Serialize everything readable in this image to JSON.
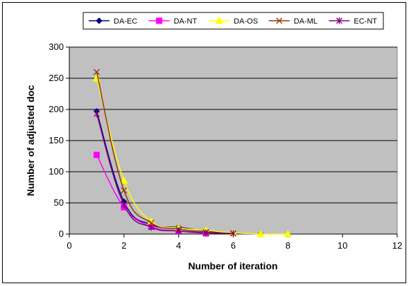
{
  "chart_data": {
    "type": "line",
    "title": "",
    "xlabel": "Number of iteration",
    "ylabel": "Number of adjusted doc",
    "xlim": [
      0,
      12
    ],
    "ylim": [
      0,
      300
    ],
    "xticks": [
      0,
      2,
      4,
      6,
      8,
      10,
      12
    ],
    "yticks": [
      0,
      50,
      100,
      150,
      200,
      250,
      300
    ],
    "grid": "horizontal",
    "plot_background": "#c0c0c0",
    "legend_position": "top",
    "series": [
      {
        "name": "DA-EC",
        "color": "#000080",
        "marker": "diamond",
        "x": [
          1,
          2,
          3,
          4,
          5,
          6,
          7
        ],
        "y": [
          197,
          52,
          15,
          11,
          5,
          1,
          0
        ]
      },
      {
        "name": "DA-NT",
        "color": "#ff00ff",
        "marker": "square",
        "x": [
          1,
          2,
          3,
          4,
          5
        ],
        "y": [
          127,
          43,
          12,
          5,
          1
        ]
      },
      {
        "name": "DA-OS",
        "color": "#ffff00",
        "marker": "triangle",
        "x": [
          1,
          2,
          3,
          4,
          5,
          6,
          7,
          8
        ],
        "y": [
          250,
          86,
          20,
          10,
          6,
          2,
          0,
          0
        ]
      },
      {
        "name": "DA-ML",
        "color": "#993300",
        "marker": "x",
        "x": [
          1,
          2,
          3,
          4,
          5,
          6
        ],
        "y": [
          260,
          70,
          18,
          8,
          3,
          1
        ]
      },
      {
        "name": "EC-NT",
        "color": "#800080",
        "marker": "star",
        "x": [
          1,
          2,
          3,
          4,
          5,
          6
        ],
        "y": [
          193,
          47,
          11,
          5,
          2,
          1
        ]
      }
    ]
  }
}
